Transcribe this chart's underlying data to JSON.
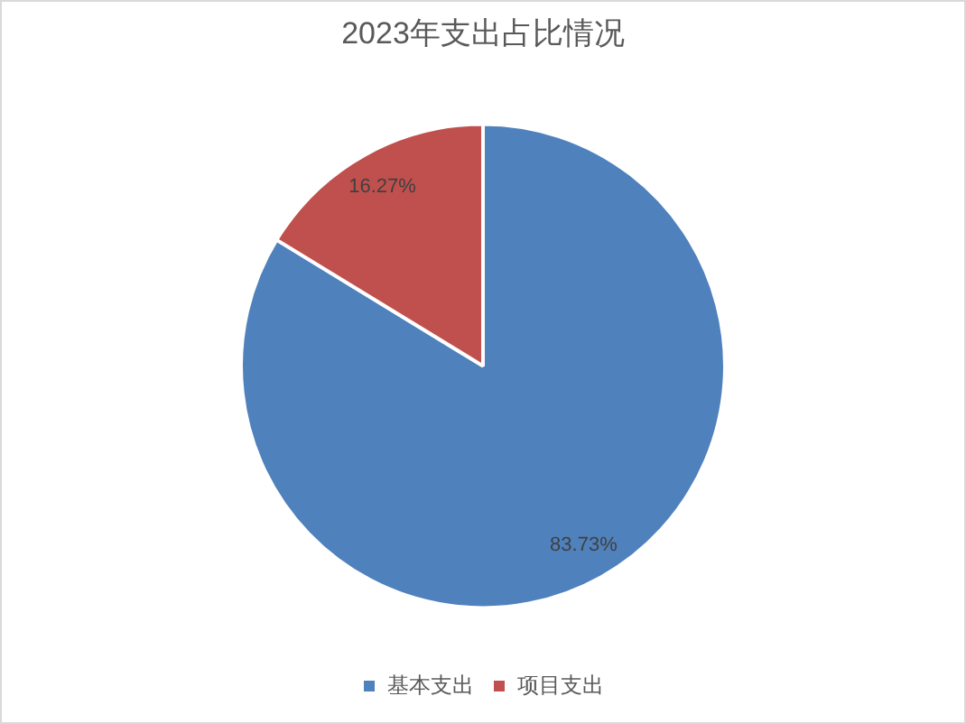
{
  "chart_data": {
    "type": "pie",
    "title": "2023年支出占比情况",
    "categories": [
      "基本支出",
      "项目支出"
    ],
    "values": [
      83.73,
      16.27
    ],
    "colors": [
      "#4f81bd",
      "#c0504d"
    ],
    "value_labels": [
      "83.73%",
      "16.27%"
    ],
    "legend": "bottom"
  }
}
